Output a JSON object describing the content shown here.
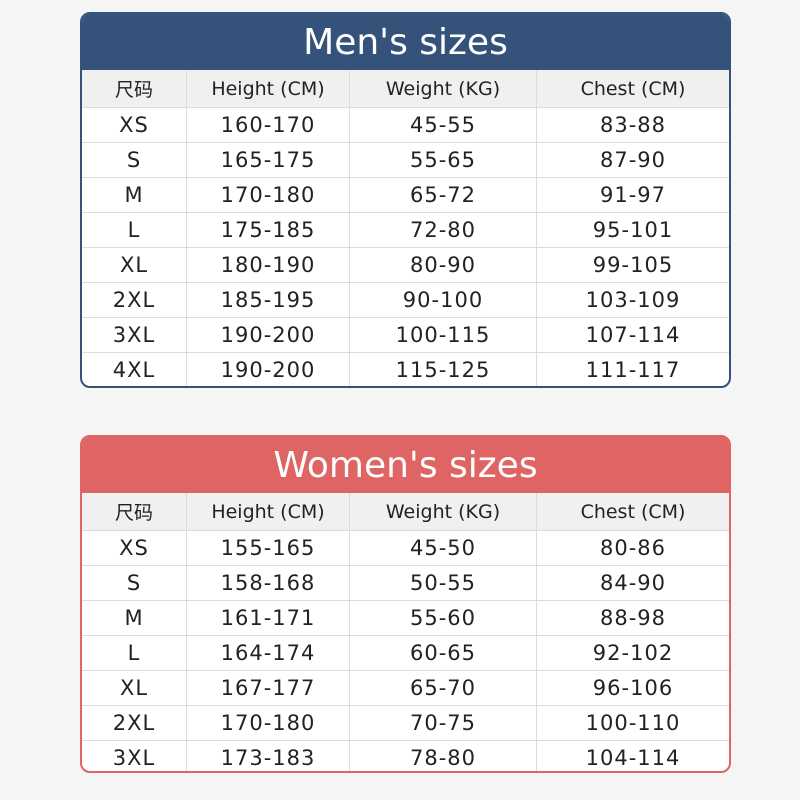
{
  "mens": {
    "title": "Men's sizes",
    "columns": [
      "尺码",
      "Height (CM)",
      "Weight (KG)",
      "Chest (CM)"
    ],
    "rows": [
      [
        "XS",
        "160-170",
        "45-55",
        "83-88"
      ],
      [
        "S",
        "165-175",
        "55-65",
        "87-90"
      ],
      [
        "M",
        "170-180",
        "65-72",
        "91-97"
      ],
      [
        "L",
        "175-185",
        "72-80",
        "95-101"
      ],
      [
        "XL",
        "180-190",
        "80-90",
        "99-105"
      ],
      [
        "2XL",
        "185-195",
        "90-100",
        "103-109"
      ],
      [
        "3XL",
        "190-200",
        "100-115",
        "107-114"
      ],
      [
        "4XL",
        "190-200",
        "115-125",
        "111-117"
      ]
    ]
  },
  "womens": {
    "title": "Women's sizes",
    "columns": [
      "尺码",
      "Height (CM)",
      "Weight (KG)",
      "Chest (CM)"
    ],
    "rows": [
      [
        "XS",
        "155-165",
        "45-50",
        "80-86"
      ],
      [
        "S",
        "158-168",
        "50-55",
        "84-90"
      ],
      [
        "M",
        "161-171",
        "55-60",
        "88-98"
      ],
      [
        "L",
        "164-174",
        "60-65",
        "92-102"
      ],
      [
        "XL",
        "167-177",
        "65-70",
        "96-106"
      ],
      [
        "2XL",
        "170-180",
        "70-75",
        "100-110"
      ],
      [
        "3XL",
        "173-183",
        "78-80",
        "104-114"
      ]
    ]
  }
}
